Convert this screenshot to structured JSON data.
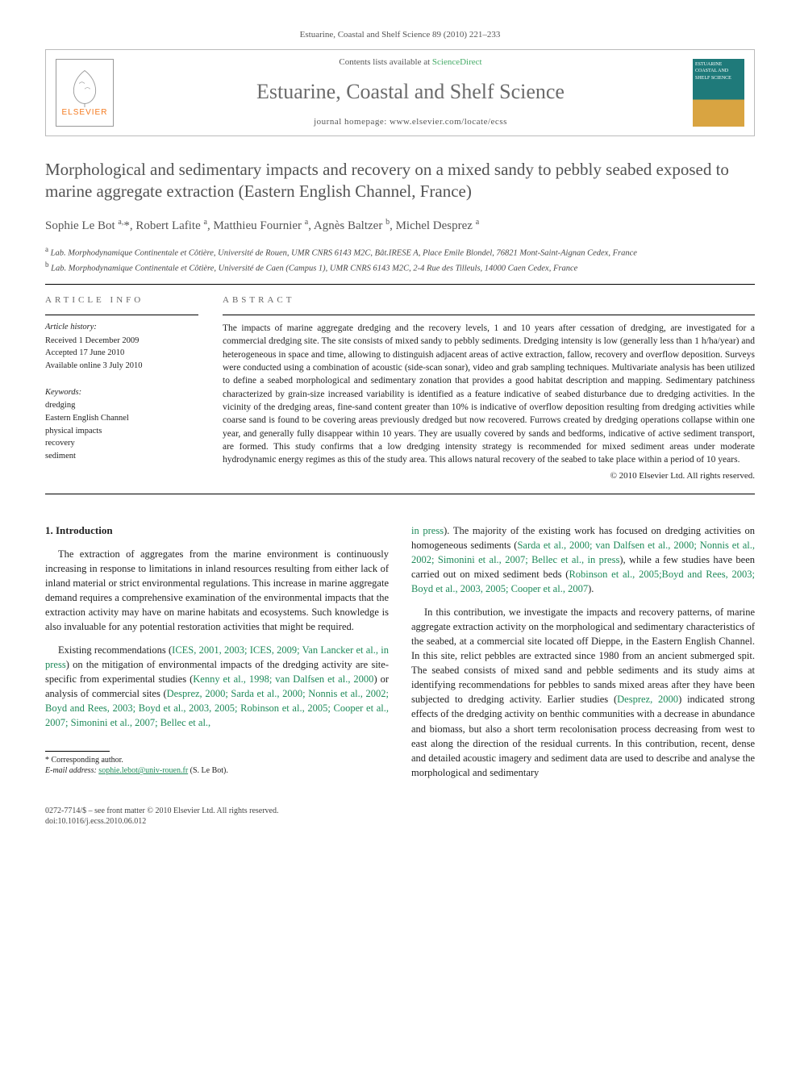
{
  "citation": "Estuarine, Coastal and Shelf Science 89 (2010) 221–233",
  "header": {
    "contents_prefix": "Contents lists available at ",
    "contents_link": "ScienceDirect",
    "journal": "Estuarine, Coastal and Shelf Science",
    "homepage_prefix": "journal homepage: ",
    "homepage_url": "www.elsevier.com/locate/ecss",
    "publisher": "ELSEVIER",
    "cover_caption": "ESTUARINE COASTAL AND SHELF SCIENCE"
  },
  "title": "Morphological and sedimentary impacts and recovery on a mixed sandy to pebbly seabed exposed to marine aggregate extraction (Eastern English Channel, France)",
  "authors_html": "Sophie Le Bot <sup>a,</sup>*, Robert Lafite <sup>a</sup>, Matthieu Fournier <sup>a</sup>, Agnès Baltzer <sup>b</sup>, Michel Desprez <sup>a</sup>",
  "affiliations": [
    "<sup>a</sup> Lab. Morphodynamique Continentale et Côtière, Université de Rouen, UMR CNRS 6143 M2C, Bât.IRESE A, Place Emile Blondel, 76821 Mont-Saint-Aignan Cedex, France",
    "<sup>b</sup> Lab. Morphodynamique Continentale et Côtière, Université de Caen (Campus 1), UMR CNRS 6143 M2C, 2-4 Rue des Tilleuls, 14000 Caen Cedex, France"
  ],
  "info_heads": {
    "article_info": "ARTICLE INFO",
    "abstract": "ABSTRACT"
  },
  "history": {
    "head": "Article history:",
    "lines": [
      "Received 1 December 2009",
      "Accepted 17 June 2010",
      "Available online 3 July 2010"
    ]
  },
  "keywords": {
    "head": "Keywords:",
    "items": [
      "dredging",
      "Eastern English Channel",
      "physical impacts",
      "recovery",
      "sediment"
    ]
  },
  "abstract": "The impacts of marine aggregate dredging and the recovery levels, 1 and 10 years after cessation of dredging, are investigated for a commercial dredging site. The site consists of mixed sandy to pebbly sediments. Dredging intensity is low (generally less than 1 h/ha/year) and heterogeneous in space and time, allowing to distinguish adjacent areas of active extraction, fallow, recovery and overflow deposition. Surveys were conducted using a combination of acoustic (side-scan sonar), video and grab sampling techniques. Multivariate analysis has been utilized to define a seabed morphological and sedimentary zonation that provides a good habitat description and mapping. Sedimentary patchiness characterized by grain-size increased variability is identified as a feature indicative of seabed disturbance due to dredging activities. In the vicinity of the dredging areas, fine-sand content greater than 10% is indicative of overflow deposition resulting from dredging activities while coarse sand is found to be covering areas previously dredged but now recovered. Furrows created by dredging operations collapse within one year, and generally fully disappear within 10 years. They are usually covered by sands and bedforms, indicative of active sediment transport, are formed. This study confirms that a low dredging intensity strategy is recommended for mixed sediment areas under moderate hydrodynamic energy regimes as this of the study area. This allows natural recovery of the seabed to take place within a period of 10 years.",
  "copyright": "© 2010 Elsevier Ltd. All rights reserved.",
  "sections": {
    "intro_head": "1. Introduction",
    "p1": "The extraction of aggregates from the marine environment is continuously increasing in response to limitations in inland resources resulting from either lack of inland material or strict environmental regulations. This increase in marine aggregate demand requires a comprehensive examination of the environmental impacts that the extraction activity may have on marine habitats and ecosystems. Such knowledge is also invaluable for any potential restoration activities that might be required.",
    "p2_a": "Existing recommendations (",
    "p2_ref1": "ICES, 2001, 2003; ICES, 2009; Van Lancker et al., in press",
    "p2_b": ") on the mitigation of environmental impacts of the dredging activity are site-specific from experimental studies (",
    "p2_ref2": "Kenny et al., 1998; van Dalfsen et al., 2000",
    "p2_c": ") or analysis of commercial sites (",
    "p2_ref3": "Desprez, 2000; Sarda et al., 2000; Nonnis et al., 2002; Boyd and Rees, 2003; Boyd et al., 2003, 2005; Robinson et al., 2005; Cooper et al., 2007; Simonini et al., 2007; Bellec et al.,",
    "p3_ref_cont": "in press",
    "p3_a": "). The majority of the existing work has focused on dredging activities on homogeneous sediments (",
    "p3_ref1": "Sarda et al., 2000; van Dalfsen et al., 2000; Nonnis et al., 2002; Simonini et al., 2007; Bellec et al., in press",
    "p3_b": "), while a few studies have been carried out on mixed sediment beds (",
    "p3_ref2": "Robinson et al., 2005;Boyd and Rees, 2003; Boyd et al., 2003, 2005; Cooper et al., 2007",
    "p3_c": ").",
    "p4_a": "In this contribution, we investigate the impacts and recovery patterns, of marine aggregate extraction activity on the morphological and sedimentary characteristics of the seabed, at a commercial site located off Dieppe, in the Eastern English Channel. In this site, relict pebbles are extracted since 1980 from an ancient submerged spit. The seabed consists of mixed sand and pebble sediments and its study aims at identifying recommendations for pebbles to sands mixed areas after they have been subjected to dredging activity. Earlier studies (",
    "p4_ref1": "Desprez, 2000",
    "p4_b": ") indicated strong effects of the dredging activity on benthic communities with a decrease in abundance and biomass, but also a short term recolonisation process decreasing from west to east along the direction of the residual currents. In this contribution, recent, dense and detailed acoustic imagery and sediment data are used to describe and analyse the morphological and sedimentary"
  },
  "footnote": {
    "corr": "* Corresponding author.",
    "email_label": "E-mail address: ",
    "email": "sophie.lebot@univ-rouen.fr",
    "email_who": " (S. Le Bot)."
  },
  "footer": {
    "l1": "0272-7714/$ – see front matter © 2010 Elsevier Ltd. All rights reserved.",
    "l2": "doi:10.1016/j.ecss.2010.06.012"
  },
  "colors": {
    "link": "#1f8a5a",
    "journal_grey": "#6b6b6b",
    "elsevier_orange": "#f47a20"
  }
}
